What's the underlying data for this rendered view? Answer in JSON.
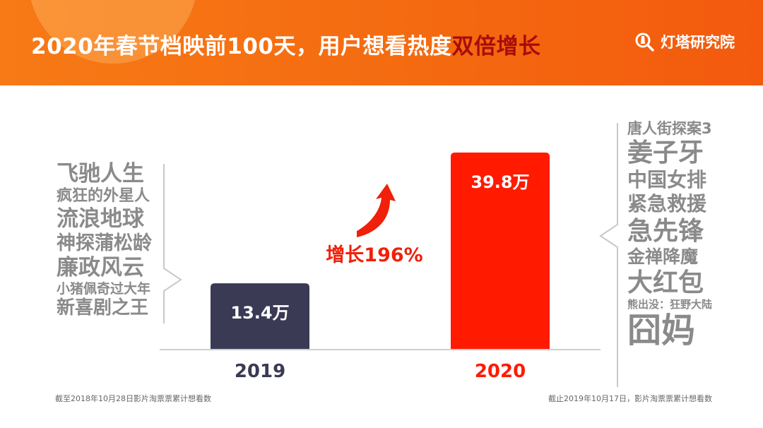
{
  "header": {
    "title_main": "2020年春节档映前100天，用户想看热度",
    "title_highlight": "双倍增长",
    "brand": "灯塔研究院",
    "brand_icon": "lighthouse-search-icon"
  },
  "colors": {
    "header_orange": "#f46a10",
    "title_highlight": "#a70c0c",
    "bar_2019": "#3a3a55",
    "bar_2020": "#ff1a00",
    "growth_red": "#f0200a",
    "movie_grey": "#8a8a8a"
  },
  "chart_data": {
    "type": "bar",
    "categories": [
      "2019",
      "2020"
    ],
    "values": [
      13.4,
      39.8
    ],
    "value_labels": [
      "13.4万",
      "39.8万"
    ],
    "unit": "万",
    "annotation": "增长196%",
    "title": "",
    "xlabel": "",
    "ylabel": "",
    "ylim": [
      0,
      42
    ],
    "grid": false
  },
  "movies_2019": [
    "飞驰人生",
    "疯狂的外星人",
    "流浪地球",
    "神探蒲松龄",
    "廉政风云",
    "小猪佩奇过大年",
    "新喜剧之王"
  ],
  "movies_2020": [
    "唐人街探案3",
    "姜子牙",
    "中国女排",
    "紧急救援",
    "急先锋",
    "金禅降魔",
    "大红包",
    "熊出没：狂野大陆",
    "囧妈"
  ],
  "footnotes": {
    "left": "截至2018年10月28日影片淘票票累计想看数",
    "right": "截止2019年10月17日，影片淘票票累计想看数"
  }
}
